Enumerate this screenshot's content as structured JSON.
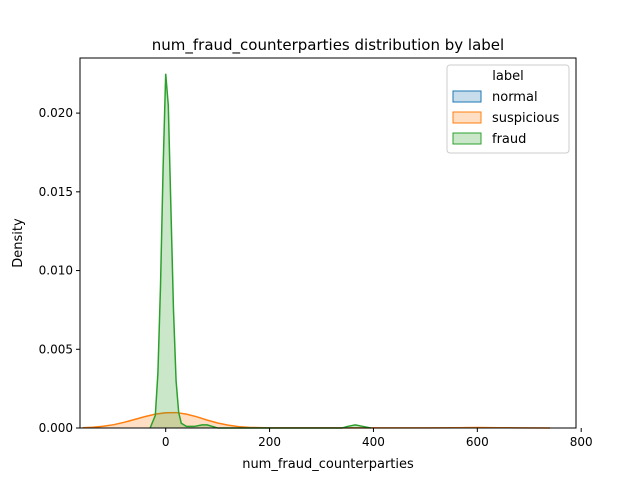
{
  "chart_data": {
    "type": "area",
    "title": "num_fraud_counterparties distribution by label",
    "xlabel": "num_fraud_counterparties",
    "ylabel": "Density",
    "xlim": [
      -165,
      790
    ],
    "ylim": [
      0,
      0.0235
    ],
    "x_ticks": [
      0,
      200,
      400,
      600,
      800
    ],
    "x_tick_labels": [
      "0",
      "200",
      "400",
      "600",
      "800"
    ],
    "y_ticks": [
      0,
      0.005,
      0.01,
      0.015,
      0.02
    ],
    "y_tick_labels": [
      "0.000",
      "0.005",
      "0.010",
      "0.015",
      "0.020"
    ],
    "grid": false,
    "legend": {
      "title": "label",
      "placement": "top-right"
    },
    "series": [
      {
        "name": "normal",
        "color": "#1f77b4",
        "points": []
      },
      {
        "name": "suspicious",
        "color": "#ff7f0e",
        "points": [
          [
            -160,
            2e-05
          ],
          [
            -140,
            5e-05
          ],
          [
            -120,
            0.00011
          ],
          [
            -100,
            0.00021
          ],
          [
            -80,
            0.00036
          ],
          [
            -60,
            0.00054
          ],
          [
            -40,
            0.00072
          ],
          [
            -20,
            0.00088
          ],
          [
            0,
            0.00097
          ],
          [
            20,
            0.00098
          ],
          [
            40,
            0.00088
          ],
          [
            60,
            0.00071
          ],
          [
            80,
            0.0005
          ],
          [
            100,
            0.00032
          ],
          [
            120,
            0.00018
          ],
          [
            140,
            9e-05
          ],
          [
            160,
            4e-05
          ],
          [
            200,
            1e-05
          ],
          [
            300,
            1e-05
          ],
          [
            400,
            1e-05
          ],
          [
            500,
            1e-05
          ],
          [
            560,
            2e-05
          ],
          [
            600,
            3e-05
          ],
          [
            640,
            2e-05
          ],
          [
            680,
            1e-05
          ],
          [
            740,
            0.0
          ]
        ]
      },
      {
        "name": "fraud",
        "color": "#2ca02c",
        "points": [
          [
            -30,
            0.0
          ],
          [
            -20,
            0.0008
          ],
          [
            -15,
            0.0035
          ],
          [
            -10,
            0.009
          ],
          [
            -5,
            0.0165
          ],
          [
            0,
            0.0225
          ],
          [
            5,
            0.0205
          ],
          [
            10,
            0.014
          ],
          [
            15,
            0.0075
          ],
          [
            20,
            0.003
          ],
          [
            25,
            0.001
          ],
          [
            30,
            0.0003
          ],
          [
            40,
            0.0001
          ],
          [
            55,
            0.0001
          ],
          [
            70,
            0.0002
          ],
          [
            80,
            0.0002
          ],
          [
            90,
            0.0001
          ],
          [
            100,
            0.0
          ],
          [
            340,
            0.0
          ],
          [
            350,
            0.0001
          ],
          [
            365,
            0.0002
          ],
          [
            380,
            0.0001
          ],
          [
            395,
            0.0
          ]
        ]
      }
    ]
  }
}
